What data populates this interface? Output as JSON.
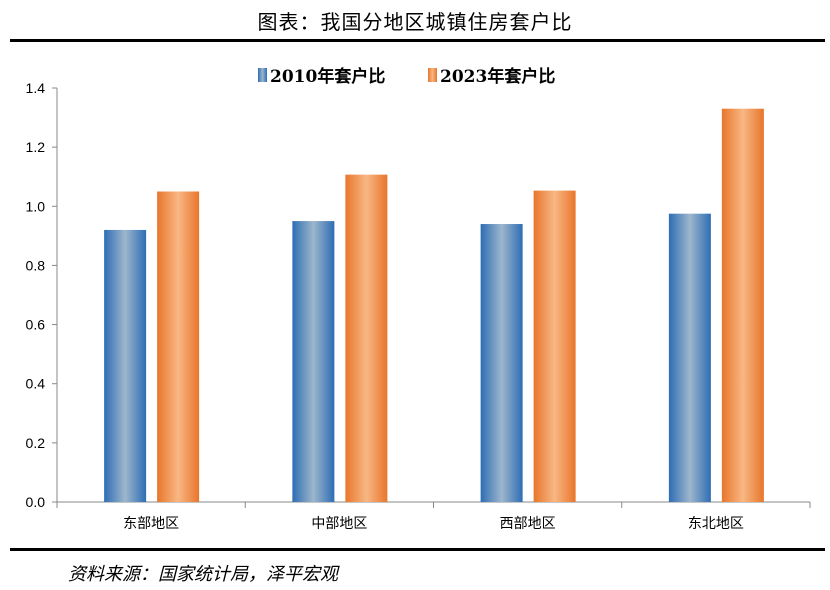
{
  "title": "图表：我国分地区城镇住房套户比",
  "source": "资料来源：国家统计局，泽平宏观",
  "chart_data": {
    "type": "bar",
    "categories": [
      "东部地区",
      "中部地区",
      "西部地区",
      "东北地区"
    ],
    "series": [
      {
        "name": "2010年套户比",
        "values": [
          0.92,
          0.95,
          0.94,
          0.975
        ],
        "color": "#2E6DB4"
      },
      {
        "name": "2023年套户比",
        "values": [
          1.05,
          1.107,
          1.053,
          1.33
        ],
        "color": "#E8762B"
      }
    ],
    "ylim": [
      0,
      1.4
    ],
    "yticks": [
      "0.0",
      "0.2",
      "0.4",
      "0.6",
      "0.8",
      "1.0",
      "1.2",
      "1.4"
    ],
    "grid": false,
    "legend": "top-center"
  }
}
